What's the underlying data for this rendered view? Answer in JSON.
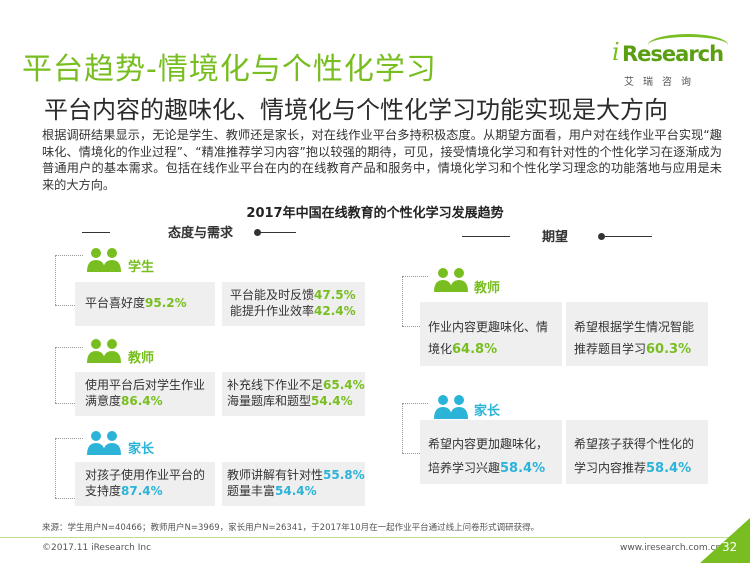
{
  "header": {
    "title": "平台趋势-情境化与个性化学习",
    "subtitle": "平台内容的趣味化、情境化与个性化学习功能实现是大方向"
  },
  "logo": {
    "word": "Research",
    "sub": "艾瑞咨询"
  },
  "paragraph": "根据调研结果显示，无论是学生、教师还是家长，对在线作业平台多持积极态度。从期望方面看，用户对在线作业平台实现“趣味化、情境化的作业过程”、“精准推荐学习内容”抱以较强的期待，可见，接受情境化学习和有针对性的个性化学习在逐渐成为普通用户的基本需求。包括在线作业平台在内的在线教育产品和服务中，情境化学习和个性化学习理念的功能落地与应用是未来的大方向。",
  "figure": {
    "title": "2017年中国在线教育的个性化学习发展趋势",
    "left_heading": "态度与需求",
    "right_heading": "期望"
  },
  "left_groups": [
    {
      "label": "学生",
      "color": "#78be20",
      "box1": {
        "text": "平台喜好度",
        "value": "95.2%"
      },
      "box2": {
        "line1": "平台能及时反馈",
        "value1": "47.5%",
        "line2": "能提升作业效率",
        "value2": "42.4%"
      }
    },
    {
      "label": "教师",
      "color": "#78be20",
      "box1": {
        "line1": "使用平台后对学生作业",
        "line2": "满意度",
        "value": "86.4%"
      },
      "box2": {
        "line1": "补充线下作业不足",
        "value1": "65.4%",
        "line2": "海量题库和题型",
        "value2": "54.4%"
      }
    },
    {
      "label": "家长",
      "color": "#2cb3d8",
      "box1": {
        "line1": "对孩子使用作业平台的",
        "line2": "支持度",
        "value": "87.4%"
      },
      "box2": {
        "line1": "教师讲解有针对性",
        "value1": "55.8%",
        "line2": "题量丰富",
        "value2": "54.4%"
      }
    }
  ],
  "right_groups": [
    {
      "label": "教师",
      "color": "#78be20",
      "box1": {
        "line1": "作业内容更趣味化、情",
        "line2": "境化",
        "value": "64.8%"
      },
      "box2": {
        "line1": "希望根据学生情况智能",
        "line2": "推荐题目学习",
        "value": "60.3%"
      }
    },
    {
      "label": "家长",
      "color": "#2cb3d8",
      "box1": {
        "line1": "希望内容更加趣味化，",
        "line2": "培养学习兴趣",
        "value": "58.4%"
      },
      "box2": {
        "line1": "希望孩子获得个性化的",
        "line2": "学习内容推荐",
        "value": "58.4%"
      }
    }
  ],
  "footer": {
    "source": "来源：学生用户N=40466；教师用户N=3969，家长用户N=26341，于2017年10月在一起作业平台通过线上问卷形式调研获得。",
    "copyright": "©2017.11 iResearch Inc",
    "website": "www.iresearch.com.cn",
    "page": "32"
  }
}
